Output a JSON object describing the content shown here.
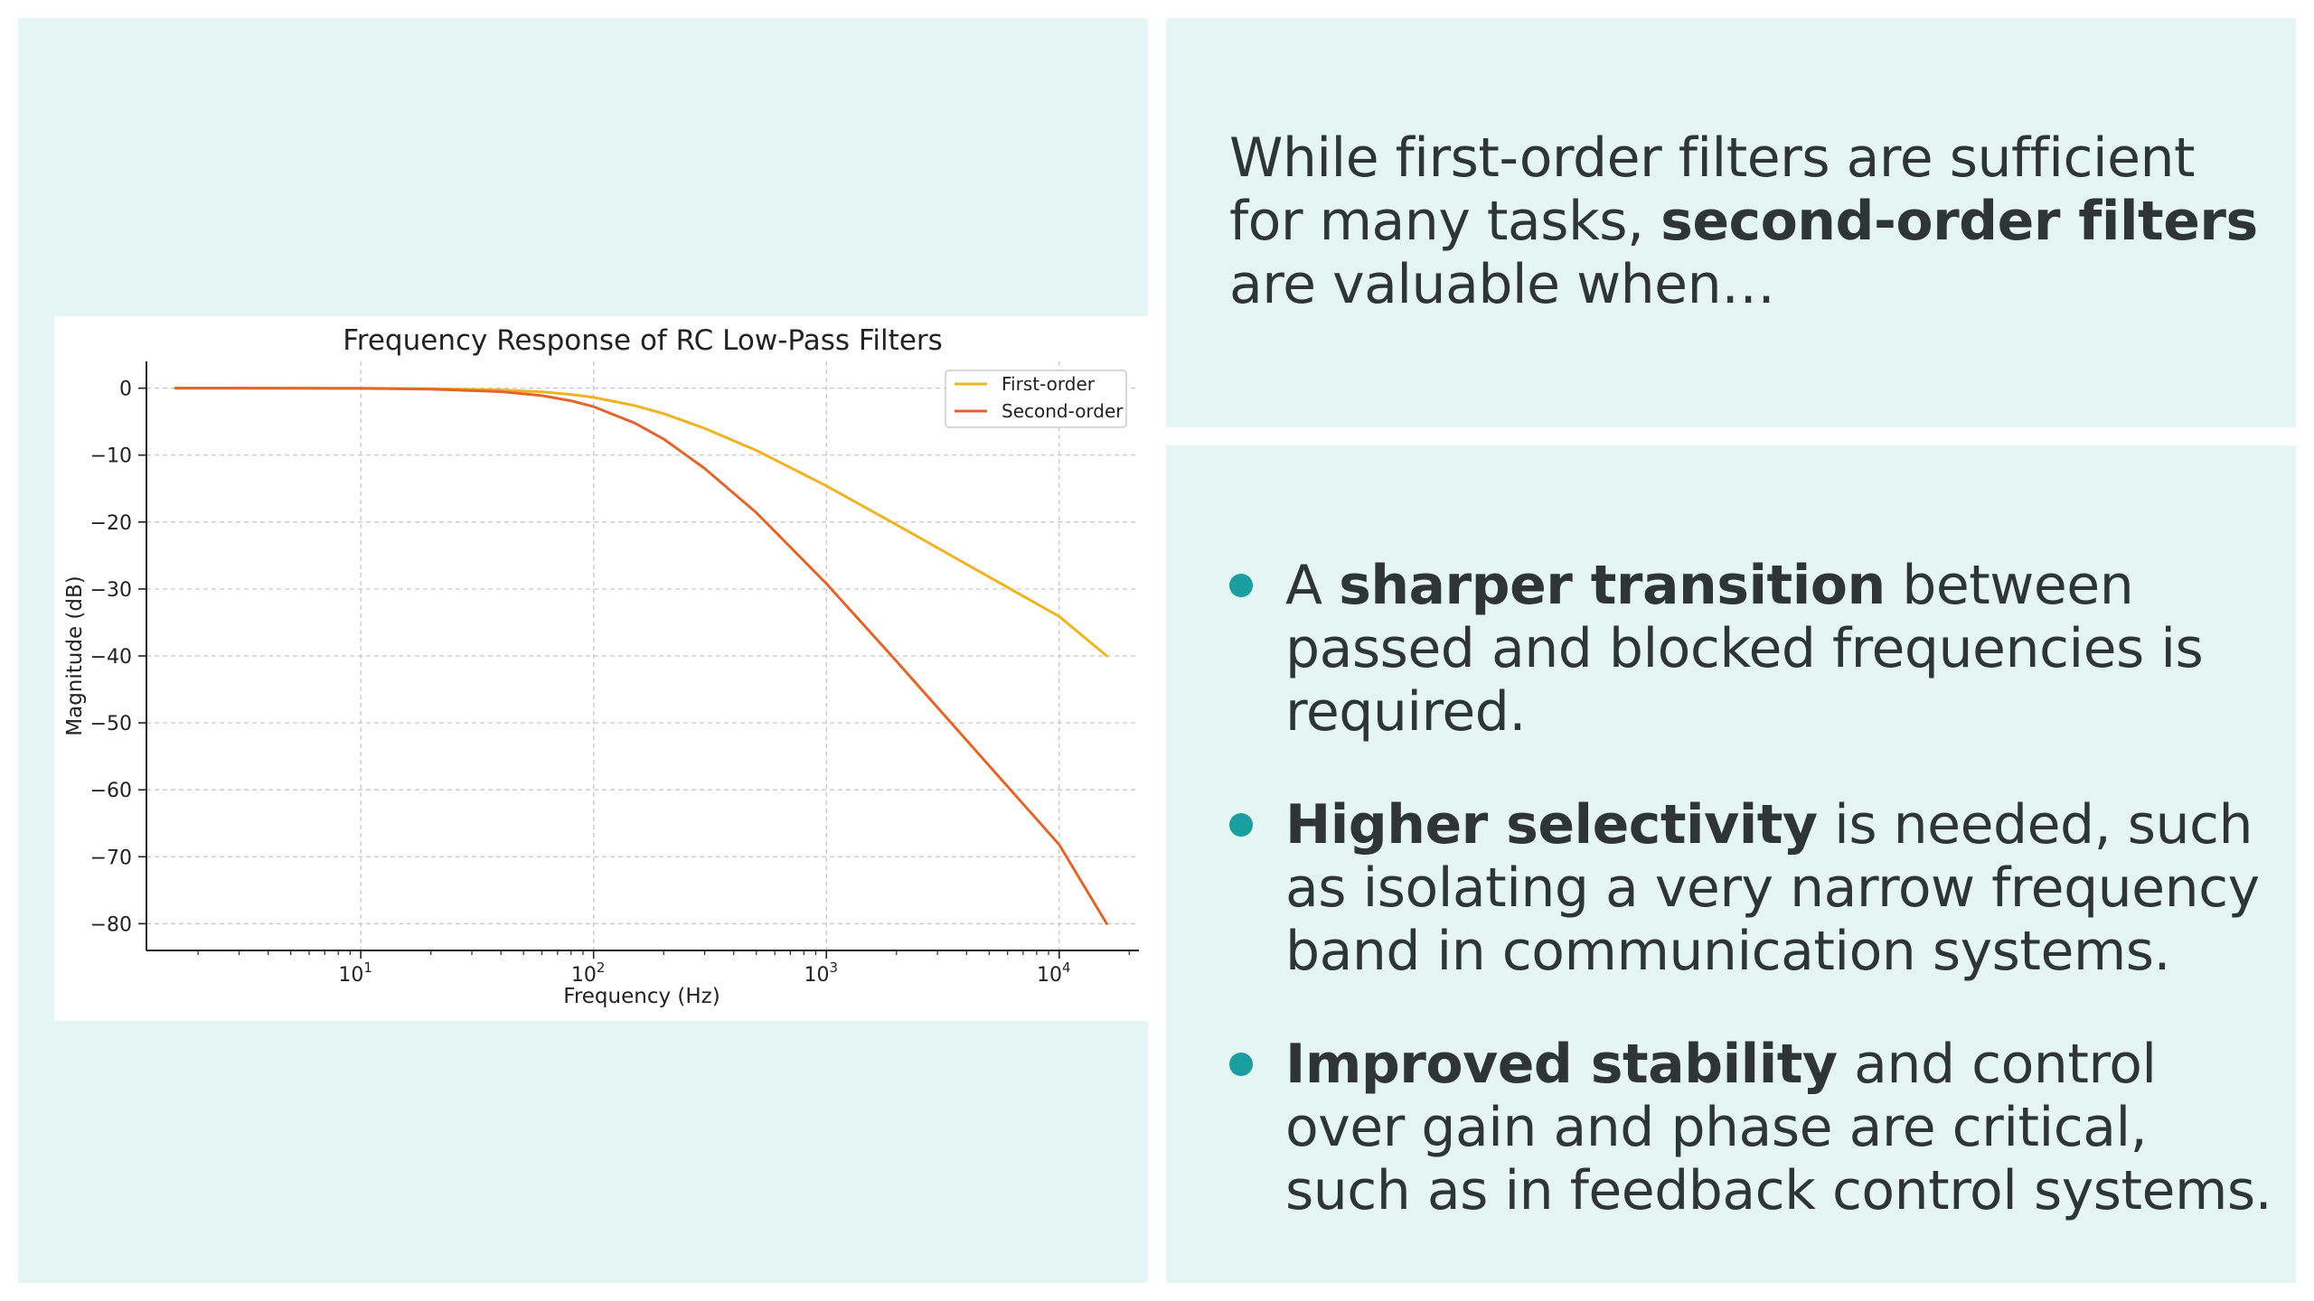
{
  "intro": {
    "part1": "While first-order filters are sufficient for many tasks, ",
    "bold": "second-order filters",
    "part2": " are valuable when…"
  },
  "bullets": [
    {
      "pre": "A ",
      "bold": "sharper transition",
      "post": " between passed and blocked frequencies is required."
    },
    {
      "pre": "",
      "bold": "Higher selectivity",
      "post": " is needed, such as isolating a very narrow frequency band in communication systems."
    },
    {
      "pre": "",
      "bold": "Improved stability",
      "post": " and control over gain and phase are critical, such as in feedback control systems."
    }
  ],
  "colors": {
    "panel": "#e5f5f4",
    "accent": "#1a9ea0",
    "first_order": "#f0b323",
    "second_order": "#e0662e"
  },
  "chart_data": {
    "type": "line",
    "title": "Frequency Response of RC Low-Pass Filters",
    "xlabel": "Frequency (Hz)",
    "ylabel": "Magnitude (dB)",
    "x_scale": "log",
    "xlim": [
      1.2,
      22000
    ],
    "ylim": [
      -84,
      4
    ],
    "x_ticks": [
      {
        "value": 10,
        "base": "10",
        "exp": "1"
      },
      {
        "value": 100,
        "base": "10",
        "exp": "2"
      },
      {
        "value": 1000,
        "base": "10",
        "exp": "3"
      },
      {
        "value": 10000,
        "base": "10",
        "exp": "4"
      }
    ],
    "y_ticks": [
      {
        "value": 0,
        "label": "0"
      },
      {
        "value": -10,
        "label": "−10"
      },
      {
        "value": -20,
        "label": "−20"
      },
      {
        "value": -30,
        "label": "−30"
      },
      {
        "value": -40,
        "label": "−40"
      },
      {
        "value": -50,
        "label": "−50"
      },
      {
        "value": -60,
        "label": "−60"
      },
      {
        "value": -70,
        "label": "−70"
      },
      {
        "value": -80,
        "label": "−80"
      }
    ],
    "grid": true,
    "legend_position": "top-right",
    "series": [
      {
        "name": "First-order",
        "color": "#f0b323",
        "x": [
          1.6,
          5,
          10,
          20,
          40,
          60,
          80,
          100,
          150,
          200,
          300,
          500,
          1000,
          2000,
          5000,
          10000,
          16000
        ],
        "y": [
          0,
          0,
          -0.02,
          -0.07,
          -0.26,
          -0.56,
          -0.94,
          -1.38,
          -2.6,
          -3.8,
          -6.0,
          -9.3,
          -14.6,
          -20.4,
          -28.2,
          -34.1,
          -40
        ]
      },
      {
        "name": "Second-order",
        "color": "#e0662e",
        "x": [
          1.6,
          5,
          10,
          20,
          40,
          60,
          80,
          100,
          150,
          200,
          300,
          500,
          1000,
          2000,
          5000,
          10000,
          16000
        ],
        "y": [
          0,
          -0.01,
          -0.04,
          -0.14,
          -0.52,
          -1.12,
          -1.88,
          -2.76,
          -5.2,
          -7.6,
          -12.0,
          -18.6,
          -29.2,
          -40.8,
          -56.4,
          -68.2,
          -80
        ]
      }
    ]
  }
}
